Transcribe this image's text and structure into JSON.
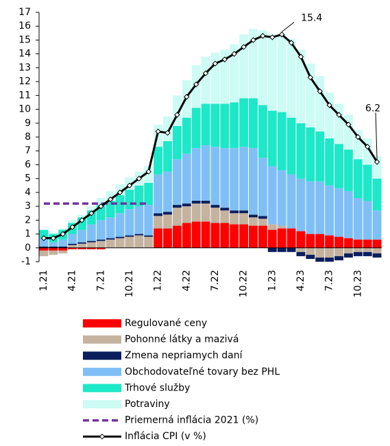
{
  "chart_data": {
    "type": "stacked-bar-line",
    "categories": [
      "1.21",
      null,
      null,
      "4.21",
      null,
      null,
      "7.21",
      null,
      null,
      "10.21",
      null,
      null,
      "1.22",
      null,
      null,
      "4.22",
      null,
      null,
      "7.22",
      null,
      null,
      "10.22",
      null,
      null,
      "1.23",
      null,
      null,
      "4.23",
      null,
      null,
      "7.23",
      null,
      null,
      "10.23",
      null,
      null
    ],
    "ylim": [
      -1,
      17
    ],
    "yticks": [
      -1,
      0,
      1,
      2,
      3,
      4,
      5,
      6,
      7,
      8,
      9,
      10,
      11,
      12,
      13,
      14,
      15,
      16,
      17
    ],
    "series": [
      {
        "name": "Regulované ceny",
        "color": "#ff0000",
        "kind": "bar",
        "values": [
          -0.2,
          -0.2,
          -0.2,
          -0.1,
          -0.1,
          -0.1,
          -0.1,
          0,
          0,
          0,
          0,
          0,
          1.4,
          1.4,
          1.6,
          1.8,
          1.9,
          1.9,
          1.8,
          1.8,
          1.7,
          1.7,
          1.6,
          1.6,
          1.3,
          1.4,
          1.4,
          1.2,
          1.0,
          1.0,
          0.9,
          0.8,
          0.7,
          0.6,
          0.6,
          0.6
        ]
      },
      {
        "name": "Pohonné látky a mazivá",
        "color": "#c4b39f",
        "kind": "bar",
        "values": [
          -0.4,
          -0.3,
          -0.2,
          0.2,
          0.3,
          0.4,
          0.5,
          0.6,
          0.7,
          0.8,
          0.9,
          0.8,
          0.9,
          1.0,
          1.3,
          1.2,
          1.3,
          1.3,
          1.1,
          0.9,
          0.8,
          0.8,
          0.6,
          0.5,
          0.4,
          0.2,
          0.0,
          -0.3,
          -0.5,
          -0.7,
          -0.7,
          -0.6,
          -0.4,
          -0.3,
          -0.3,
          -0.4
        ]
      },
      {
        "name": "Zmena nepriamych daní",
        "color": "#0a1f5c",
        "kind": "bar",
        "values": [
          0.1,
          0.1,
          0.1,
          0.1,
          0.1,
          0.1,
          0.1,
          0.1,
          0.1,
          0.1,
          0.1,
          0.1,
          0.2,
          0.2,
          0.2,
          0.2,
          0.2,
          0.2,
          0.2,
          0.2,
          0.2,
          0.2,
          0.2,
          0.2,
          -0.3,
          -0.3,
          -0.3,
          -0.3,
          -0.3,
          -0.3,
          -0.3,
          -0.3,
          -0.3,
          -0.3,
          -0.3,
          -0.3
        ]
      },
      {
        "name": "Obchodovateľné tovary bez PHL",
        "color": "#7fbff5",
        "kind": "bar",
        "values": [
          0.6,
          0.3,
          0.5,
          0.7,
          0.9,
          1.2,
          1.4,
          1.5,
          1.7,
          1.9,
          2.0,
          2.2,
          2.8,
          2.9,
          3.3,
          3.6,
          3.8,
          4.0,
          4.2,
          4.3,
          4.5,
          4.6,
          4.8,
          4.2,
          4.2,
          4.0,
          3.9,
          3.8,
          3.8,
          3.8,
          3.6,
          3.5,
          3.4,
          3.0,
          2.8,
          2.1
        ]
      },
      {
        "name": "Trhové služby",
        "color": "#1de8c8",
        "kind": "bar",
        "values": [
          0.6,
          0.6,
          0.7,
          0.8,
          0.9,
          1.0,
          1.1,
          1.2,
          1.3,
          1.4,
          1.5,
          1.6,
          2.0,
          2.2,
          2.4,
          2.6,
          2.9,
          3.0,
          3.1,
          3.2,
          3.3,
          3.5,
          3.6,
          3.8,
          4.0,
          4.2,
          4.1,
          4.0,
          3.9,
          3.6,
          3.4,
          3.2,
          3.0,
          2.8,
          2.6,
          2.3
        ]
      },
      {
        "name": "Potraviny",
        "color": "#ccfcf4",
        "kind": "bar",
        "values": [
          0,
          0.1,
          0.1,
          0.2,
          0.2,
          0.3,
          0.5,
          0.7,
          0.8,
          0.9,
          1.0,
          1.2,
          1.6,
          1.8,
          2.2,
          2.7,
          3.1,
          3.4,
          3.7,
          3.9,
          4.2,
          4.6,
          5.0,
          5.4,
          5.5,
          5.6,
          5.7,
          5.3,
          4.6,
          4.0,
          3.3,
          2.9,
          2.5,
          2.1,
          1.9,
          1.6
        ]
      },
      {
        "name": "Priemerná inflácia 2021 (%)",
        "color": "#7030a0",
        "kind": "dashed",
        "values": [
          3.2,
          3.2,
          3.2,
          3.2,
          3.2,
          3.2,
          3.2,
          3.2,
          3.2,
          3.2,
          3.2,
          3.2,
          null,
          null,
          null,
          null,
          null,
          null,
          null,
          null,
          null,
          null,
          null,
          null,
          null,
          null,
          null,
          null,
          null,
          null,
          null,
          null,
          null,
          null,
          null,
          null
        ]
      },
      {
        "name": "Inflácia CPI (v %)",
        "color": "#000000",
        "kind": "line",
        "values": [
          0.7,
          0.7,
          1.0,
          1.5,
          2.0,
          2.5,
          3.0,
          3.5,
          4.0,
          4.5,
          5.0,
          5.5,
          8.4,
          8.3,
          9.6,
          10.9,
          11.8,
          12.6,
          13.3,
          13.6,
          14.0,
          14.5,
          15.0,
          15.3,
          15.2,
          15.4,
          14.8,
          13.8,
          12.3,
          11.3,
          10.3,
          9.6,
          8.9,
          8.0,
          7.3,
          6.2
        ],
        "value_labels": [
          null,
          null,
          null,
          null,
          null,
          null,
          null,
          null,
          null,
          null,
          null,
          null,
          null,
          null,
          null,
          null,
          null,
          null,
          null,
          null,
          null,
          null,
          null,
          null,
          null,
          "15.4",
          null,
          null,
          null,
          null,
          null,
          null,
          null,
          null,
          null,
          "6.2"
        ]
      }
    ]
  }
}
